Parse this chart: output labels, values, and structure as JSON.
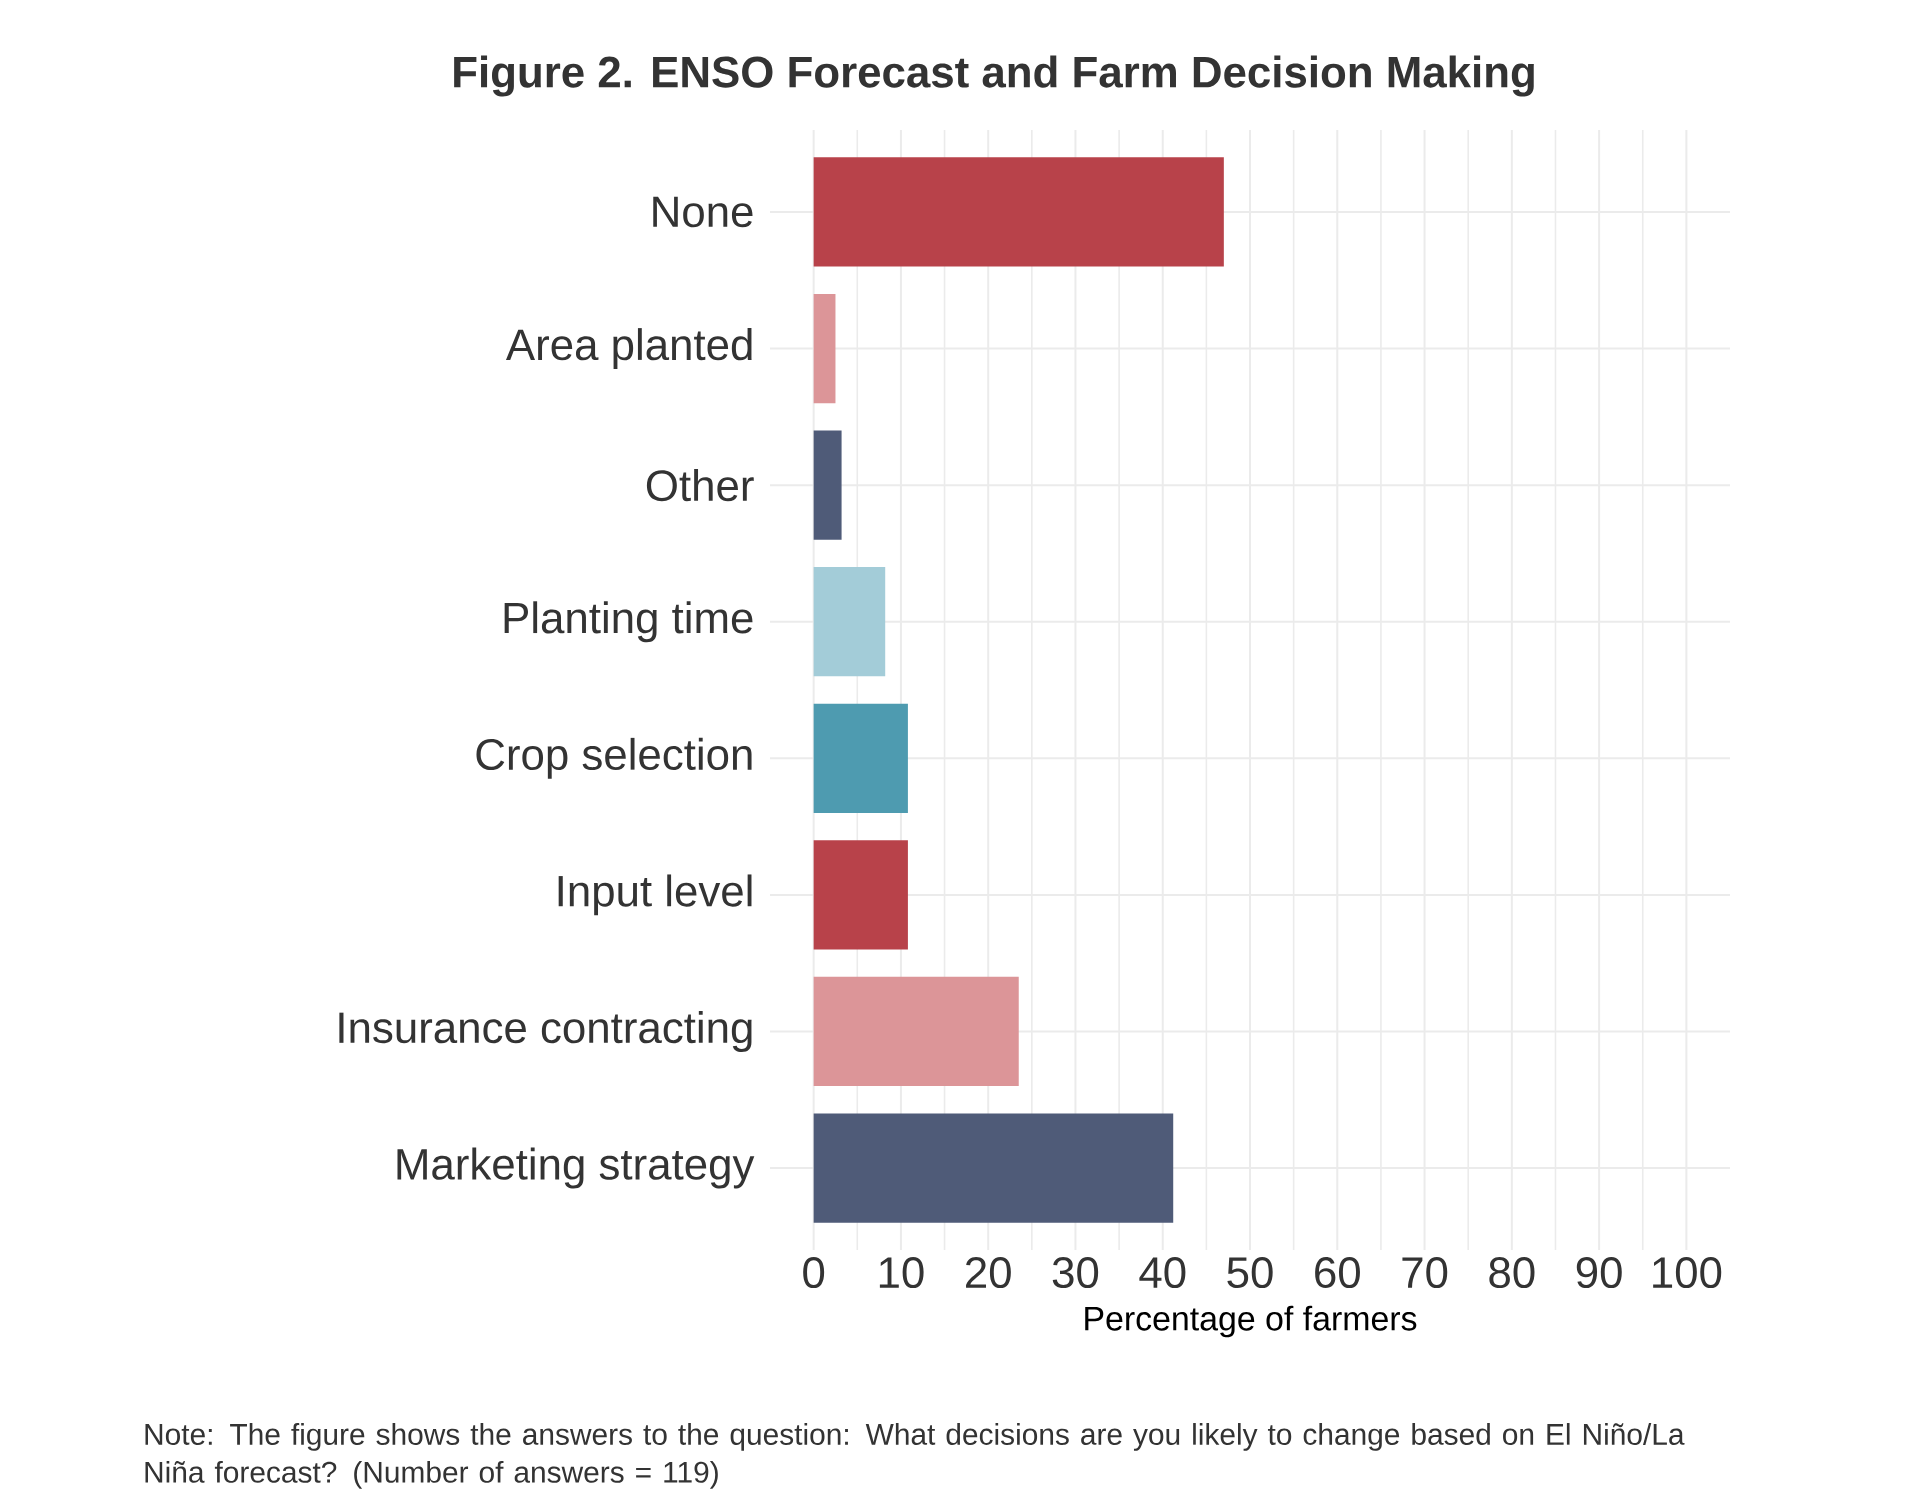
{
  "chart_data": {
    "type": "bar",
    "orientation": "horizontal",
    "title": "Figure 2. ENSO Forecast and Farm Decision Making",
    "xlabel": "Percentage of farmers",
    "categories": [
      "None",
      "Area planted",
      "Other",
      "Planting time",
      "Crop selection",
      "Input level",
      "Insurance contracting",
      "Marketing strategy"
    ],
    "values": [
      47,
      2.5,
      3.2,
      8.2,
      10.8,
      10.8,
      23.5,
      41.2
    ],
    "colors": [
      "#b8424a",
      "#dc9598",
      "#4f5b78",
      "#a3ccd8",
      "#4e9bb0",
      "#b8424a",
      "#dc9598",
      "#4f5b78"
    ],
    "xlim": [
      -5,
      105
    ],
    "xticks": [
      0,
      10,
      20,
      30,
      40,
      50,
      60,
      70,
      80,
      90,
      100
    ],
    "grid": true,
    "annotations": [
      "Note: The figure shows the answers to the question: What decisions are you likely to change based on El Niño/La Niña forecast? (Number of answers = 119)"
    ]
  }
}
